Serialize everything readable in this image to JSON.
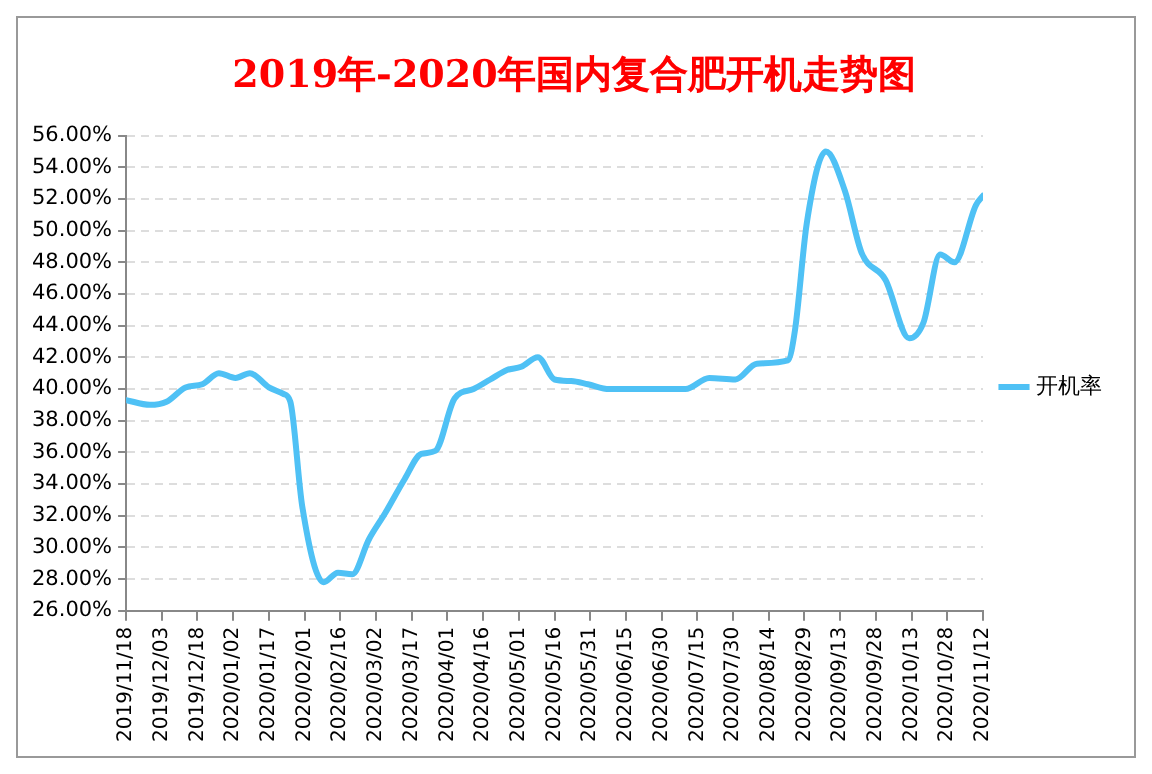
{
  "chart_data": {
    "type": "line",
    "title": "2019年-2020年国内复合肥开机走势图",
    "x": [
      "2019-11-18",
      "2019-11-28",
      "2019-12-05",
      "2019-12-13",
      "2019-12-20",
      "2019-12-27",
      "2020-01-03",
      "2020-01-09",
      "2020-01-17",
      "2020-01-23",
      "2020-01-26",
      "2020-01-31",
      "2020-02-09",
      "2020-02-15",
      "2020-02-21",
      "2020-02-28",
      "2020-03-06",
      "2020-03-14",
      "2020-03-21",
      "2020-03-27",
      "2020-04-04",
      "2020-04-12",
      "2020-04-19",
      "2020-04-26",
      "2020-05-02",
      "2020-05-09",
      "2020-05-16",
      "2020-05-23",
      "2020-05-30",
      "2020-06-08",
      "2020-06-15",
      "2020-07-10",
      "2020-07-20",
      "2020-07-31",
      "2020-08-09",
      "2020-08-22",
      "2020-08-25",
      "2020-08-30",
      "2020-09-07",
      "2020-09-15",
      "2020-09-22",
      "2020-10-02",
      "2020-10-12",
      "2020-10-18",
      "2020-10-25",
      "2020-10-31",
      "2020-11-09",
      "2020-11-12"
    ],
    "series": [
      {
        "name": "开机率",
        "color": "#4fc1f5",
        "values": [
          39.3,
          39.0,
          39.2,
          40.1,
          40.3,
          41.0,
          40.7,
          41.0,
          40.1,
          39.7,
          39.2,
          32.6,
          27.8,
          28.4,
          28.3,
          30.5,
          32.2,
          34.3,
          35.9,
          36.1,
          39.4,
          40.0,
          40.6,
          41.2,
          41.4,
          42.0,
          40.6,
          40.5,
          40.3,
          40.0,
          40.0,
          40.0,
          40.7,
          40.6,
          41.6,
          41.8,
          43.7,
          50.5,
          55.0,
          52.5,
          48.6,
          46.9,
          43.2,
          44.2,
          48.5,
          48.0,
          51.6,
          52.2
        ]
      }
    ],
    "xlim": [
      "2019-11-18",
      "2020-11-12"
    ],
    "xticks": [
      {
        "value": "2019-11-18",
        "label": "2019/11/18"
      },
      {
        "value": "2019-12-03",
        "label": "2019/12/03"
      },
      {
        "value": "2019-12-18",
        "label": "2019/12/18"
      },
      {
        "value": "2020-01-02",
        "label": "2020/01/02"
      },
      {
        "value": "2020-01-17",
        "label": "2020/01/17"
      },
      {
        "value": "2020-02-01",
        "label": "2020/02/01"
      },
      {
        "value": "2020-02-16",
        "label": "2020/02/16"
      },
      {
        "value": "2020-03-02",
        "label": "2020/03/02"
      },
      {
        "value": "2020-03-17",
        "label": "2020/03/17"
      },
      {
        "value": "2020-04-01",
        "label": "2020/04/01"
      },
      {
        "value": "2020-04-16",
        "label": "2020/04/16"
      },
      {
        "value": "2020-05-01",
        "label": "2020/05/01"
      },
      {
        "value": "2020-05-16",
        "label": "2020/05/16"
      },
      {
        "value": "2020-05-31",
        "label": "2020/05/31"
      },
      {
        "value": "2020-06-15",
        "label": "2020/06/15"
      },
      {
        "value": "2020-06-30",
        "label": "2020/06/30"
      },
      {
        "value": "2020-07-15",
        "label": "2020/07/15"
      },
      {
        "value": "2020-07-30",
        "label": "2020/07/30"
      },
      {
        "value": "2020-08-14",
        "label": "2020/08/14"
      },
      {
        "value": "2020-08-29",
        "label": "2020/08/29"
      },
      {
        "value": "2020-09-13",
        "label": "2020/09/13"
      },
      {
        "value": "2020-09-28",
        "label": "2020/09/28"
      },
      {
        "value": "2020-10-13",
        "label": "2020/10/13"
      },
      {
        "value": "2020-10-28",
        "label": "2020/10/28"
      },
      {
        "value": "2020-11-12",
        "label": "2020/11/12"
      }
    ],
    "ylim": [
      26,
      56
    ],
    "yticks": [
      {
        "value": 26,
        "label": "26.00%"
      },
      {
        "value": 28,
        "label": "28.00%"
      },
      {
        "value": 30,
        "label": "30.00%"
      },
      {
        "value": 32,
        "label": "32.00%"
      },
      {
        "value": 34,
        "label": "34.00%"
      },
      {
        "value": 36,
        "label": "36.00%"
      },
      {
        "value": 38,
        "label": "38.00%"
      },
      {
        "value": 40,
        "label": "40.00%"
      },
      {
        "value": 42,
        "label": "42.00%"
      },
      {
        "value": 44,
        "label": "44.00%"
      },
      {
        "value": 46,
        "label": "46.00%"
      },
      {
        "value": 48,
        "label": "48.00%"
      },
      {
        "value": 50,
        "label": "50.00%"
      },
      {
        "value": 52,
        "label": "52.00%"
      },
      {
        "value": 54,
        "label": "54.00%"
      },
      {
        "value": 56,
        "label": "56.00%"
      }
    ],
    "grid": "y",
    "legend": "right",
    "marker": "none",
    "line_style": "solid"
  }
}
